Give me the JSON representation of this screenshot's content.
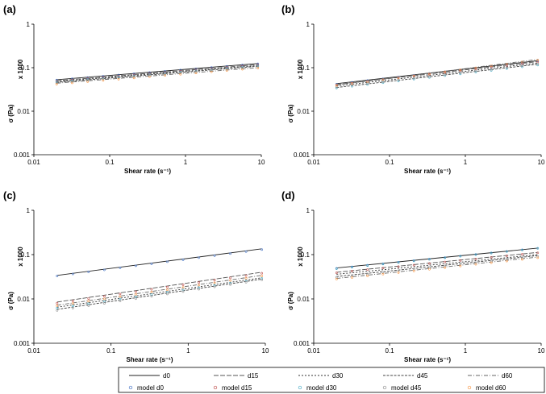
{
  "figure": {
    "colors": {
      "measured": "#333333",
      "model_d0": "#4472c4",
      "model_d15": "#c0504d",
      "model_d30": "#4bacc6",
      "model_d45": "#8f8f8f",
      "model_d60": "#f79646",
      "axis": "#000000"
    },
    "legend": {
      "row1": [
        "d0",
        "d15",
        "d30",
        "d45",
        "d60"
      ],
      "row2": [
        "model d0",
        "model d15",
        "model d30",
        "model d45",
        "model d60"
      ]
    }
  },
  "chart_data": [
    {
      "label": "(a)",
      "type": "line",
      "xscale": "log",
      "yscale": "log",
      "xlabel": "Shear rate (s⁻¹)",
      "ylabel": "σ (Pa)",
      "ymultiplier": "x 1000",
      "xlim": [
        0.01,
        10
      ],
      "ylim": [
        0.001,
        1
      ],
      "xticks": [
        "0.01",
        "0.1",
        "1",
        "10"
      ],
      "yticks": [
        "0.001",
        "0.01",
        "0.1",
        "1"
      ],
      "series": [
        {
          "name": "d0",
          "kind": "measured",
          "x": [
            0.02,
            9
          ],
          "y": [
            0.053,
            0.125
          ]
        },
        {
          "name": "d15",
          "kind": "measured",
          "x": [
            0.02,
            9
          ],
          "y": [
            0.05,
            0.118
          ]
        },
        {
          "name": "d30",
          "kind": "measured",
          "x": [
            0.02,
            9
          ],
          "y": [
            0.048,
            0.112
          ]
        },
        {
          "name": "d45",
          "kind": "measured",
          "x": [
            0.02,
            9
          ],
          "y": [
            0.046,
            0.108
          ]
        },
        {
          "name": "d60",
          "kind": "measured",
          "x": [
            0.02,
            9
          ],
          "y": [
            0.044,
            0.1
          ]
        },
        {
          "name": "model d0",
          "kind": "model",
          "x": [
            0.02,
            9
          ],
          "y": [
            0.052,
            0.123
          ]
        },
        {
          "name": "model d15",
          "kind": "model",
          "x": [
            0.02,
            9
          ],
          "y": [
            0.049,
            0.116
          ]
        },
        {
          "name": "model d30",
          "kind": "model",
          "x": [
            0.02,
            9
          ],
          "y": [
            0.047,
            0.11
          ]
        },
        {
          "name": "model d45",
          "kind": "model",
          "x": [
            0.02,
            9
          ],
          "y": [
            0.045,
            0.105
          ]
        },
        {
          "name": "model d60",
          "kind": "model",
          "x": [
            0.02,
            9
          ],
          "y": [
            0.042,
            0.098
          ]
        }
      ]
    },
    {
      "label": "(b)",
      "type": "line",
      "xscale": "log",
      "yscale": "log",
      "xlabel": "Shear rate (s⁻¹)",
      "ylabel": "σ (Pa)",
      "ymultiplier": "x 1000",
      "xlim": [
        0.01,
        10
      ],
      "ylim": [
        0.001,
        1
      ],
      "xticks": [
        "0.01",
        "0.1",
        "1",
        "10"
      ],
      "yticks": [
        "0.001",
        "0.01",
        "0.1",
        "1"
      ],
      "series": [
        {
          "name": "d0",
          "kind": "measured",
          "x": [
            0.02,
            9
          ],
          "y": [
            0.043,
            0.145
          ]
        },
        {
          "name": "d15",
          "kind": "measured",
          "x": [
            0.02,
            9
          ],
          "y": [
            0.041,
            0.138
          ]
        },
        {
          "name": "d30",
          "kind": "measured",
          "x": [
            0.02,
            9
          ],
          "y": [
            0.038,
            0.128
          ]
        },
        {
          "name": "d45",
          "kind": "measured",
          "x": [
            0.02,
            9
          ],
          "y": [
            0.035,
            0.12
          ]
        },
        {
          "name": "d60",
          "kind": "measured",
          "x": [
            0.02,
            9
          ],
          "y": [
            0.04,
            0.155
          ]
        },
        {
          "name": "model d0",
          "kind": "model",
          "x": [
            0.02,
            9
          ],
          "y": [
            0.042,
            0.143
          ]
        },
        {
          "name": "model d15",
          "kind": "model",
          "x": [
            0.02,
            9
          ],
          "y": [
            0.04,
            0.136
          ]
        },
        {
          "name": "model d30",
          "kind": "model",
          "x": [
            0.02,
            9
          ],
          "y": [
            0.034,
            0.115
          ]
        },
        {
          "name": "model d45",
          "kind": "model",
          "x": [
            0.02,
            9
          ],
          "y": [
            0.036,
            0.122
          ]
        },
        {
          "name": "model d60",
          "kind": "model",
          "x": [
            0.02,
            9
          ],
          "y": [
            0.039,
            0.15
          ]
        }
      ]
    },
    {
      "label": "(c)",
      "type": "line",
      "xscale": "log",
      "yscale": "log",
      "xlabel": "Shear rate (s⁻¹)",
      "ylabel": "σ (Pa)",
      "ymultiplier": "x 1000",
      "xlim": [
        0.01,
        10
      ],
      "ylim": [
        0.001,
        1
      ],
      "xticks": [
        "0.01",
        "0.1",
        "1",
        "10"
      ],
      "yticks": [
        "0.001",
        "0.01",
        "0.1",
        "1"
      ],
      "series": [
        {
          "name": "d0",
          "kind": "measured",
          "x": [
            0.02,
            9
          ],
          "y": [
            0.034,
            0.135
          ]
        },
        {
          "name": "d15",
          "kind": "measured",
          "x": [
            0.02,
            9
          ],
          "y": [
            0.0085,
            0.04
          ]
        },
        {
          "name": "d30",
          "kind": "measured",
          "x": [
            0.02,
            9
          ],
          "y": [
            0.0065,
            0.03
          ]
        },
        {
          "name": "d45",
          "kind": "measured",
          "x": [
            0.02,
            9
          ],
          "y": [
            0.0058,
            0.028
          ]
        },
        {
          "name": "d60",
          "kind": "measured",
          "x": [
            0.02,
            9
          ],
          "y": [
            0.0072,
            0.034
          ]
        },
        {
          "name": "model d0",
          "kind": "model",
          "x": [
            0.02,
            9
          ],
          "y": [
            0.033,
            0.13
          ]
        },
        {
          "name": "model d15",
          "kind": "model",
          "x": [
            0.02,
            9
          ],
          "y": [
            0.008,
            0.038
          ]
        },
        {
          "name": "model d30",
          "kind": "model",
          "x": [
            0.02,
            9
          ],
          "y": [
            0.0062,
            0.029
          ]
        },
        {
          "name": "model d45",
          "kind": "model",
          "x": [
            0.02,
            9
          ],
          "y": [
            0.0055,
            0.027
          ]
        },
        {
          "name": "model d60",
          "kind": "model",
          "x": [
            0.02,
            9
          ],
          "y": [
            0.007,
            0.033
          ]
        }
      ]
    },
    {
      "label": "(d)",
      "type": "line",
      "xscale": "log",
      "yscale": "log",
      "xlabel": "Shear rate (s⁻¹)",
      "ylabel": "σ (Pa)",
      "ymultiplier": "x 1000",
      "xlim": [
        0.01,
        10
      ],
      "ylim": [
        0.001,
        1
      ],
      "xticks": [
        "0.01",
        "0.1",
        "1",
        "10"
      ],
      "yticks": [
        "0.001",
        "0.01",
        "0.1",
        "1"
      ],
      "series": [
        {
          "name": "d0",
          "kind": "measured",
          "x": [
            0.02,
            9
          ],
          "y": [
            0.05,
            0.14
          ]
        },
        {
          "name": "d15",
          "kind": "measured",
          "x": [
            0.02,
            9
          ],
          "y": [
            0.04,
            0.112
          ]
        },
        {
          "name": "d30",
          "kind": "measured",
          "x": [
            0.02,
            9
          ],
          "y": [
            0.036,
            0.1
          ]
        },
        {
          "name": "d45",
          "kind": "measured",
          "x": [
            0.02,
            9
          ],
          "y": [
            0.032,
            0.095
          ]
        },
        {
          "name": "d60",
          "kind": "measured",
          "x": [
            0.02,
            9
          ],
          "y": [
            0.029,
            0.088
          ]
        },
        {
          "name": "model d0",
          "kind": "model",
          "x": [
            0.02,
            9
          ],
          "y": [
            0.049,
            0.139
          ]
        },
        {
          "name": "model d15",
          "kind": "model",
          "x": [
            0.02,
            9
          ],
          "y": [
            0.039,
            0.11
          ]
        },
        {
          "name": "model d30",
          "kind": "model",
          "x": [
            0.02,
            9
          ],
          "y": [
            0.048,
            0.138
          ]
        },
        {
          "name": "model d45",
          "kind": "model",
          "x": [
            0.02,
            9
          ],
          "y": [
            0.031,
            0.092
          ]
        },
        {
          "name": "model d60",
          "kind": "model",
          "x": [
            0.02,
            9
          ],
          "y": [
            0.028,
            0.085
          ]
        }
      ]
    }
  ]
}
